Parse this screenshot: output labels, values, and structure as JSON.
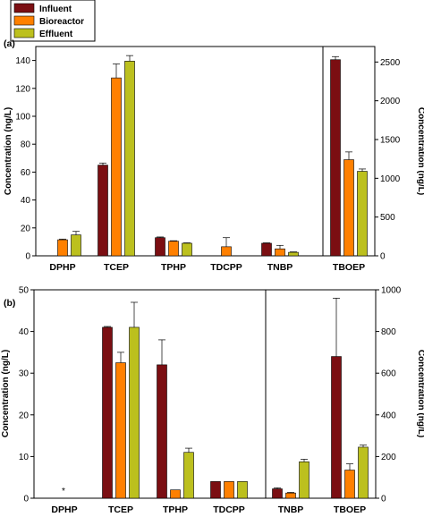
{
  "legend": [
    {
      "name": "Influent",
      "color": "#7b0e12"
    },
    {
      "name": "Bioreactor",
      "color": "#ff8000"
    },
    {
      "name": "Effluent",
      "color": "#bcc01e"
    }
  ],
  "chart_data": [
    {
      "type": "bar",
      "panel_label": "(a)",
      "categories": [
        "DPHP",
        "TCEP",
        "TPHP",
        "TDCPP",
        "TNBP",
        "TBOEP"
      ],
      "series_names": [
        "Influent",
        "Bioreactor",
        "Effluent"
      ],
      "ylabel_left": "Concentration (ng/L)",
      "ylabel_right": "Concentration (ng/L)",
      "ylim_left": [
        0,
        150
      ],
      "yticks_left": [
        0,
        20,
        40,
        60,
        80,
        100,
        120,
        140
      ],
      "ylim_right": [
        0,
        2700
      ],
      "yticks_right": [
        0,
        500,
        1000,
        1500,
        2000,
        2500
      ],
      "right_axis_categories": [
        "TBOEP"
      ],
      "groups": [
        {
          "category": "DPHP",
          "values": [
            null,
            11.5,
            15
          ],
          "errors": [
            null,
            0.5,
            2.5
          ],
          "axis": "left"
        },
        {
          "category": "TCEP",
          "values": [
            65,
            127.5,
            139.5
          ],
          "errors": [
            1.5,
            10,
            4
          ],
          "axis": "left"
        },
        {
          "category": "TPHP",
          "values": [
            13,
            10.5,
            9
          ],
          "errors": [
            0.5,
            0.3,
            0.3
          ],
          "axis": "left"
        },
        {
          "category": "TDCPP",
          "values": [
            null,
            6.5,
            null
          ],
          "errors": [
            null,
            6.5,
            null
          ],
          "axis": "left"
        },
        {
          "category": "TNBP",
          "values": [
            9,
            5,
            2.5
          ],
          "errors": [
            0.3,
            2.5,
            0.3
          ],
          "axis": "left"
        },
        {
          "category": "TBOEP",
          "values": [
            2530,
            1240,
            1090
          ],
          "errors": [
            40,
            100,
            30
          ],
          "axis": "right"
        }
      ]
    },
    {
      "type": "bar",
      "panel_label": "(b)",
      "categories": [
        "DPHP",
        "TCEP",
        "TPHP",
        "TDCPP",
        "TNBP",
        "TBOEP"
      ],
      "series_names": [
        "Influent",
        "Bioreactor",
        "Effluent"
      ],
      "ylabel_left": "Concentration (ng/L)",
      "ylabel_right": "Concentration (ng/L)",
      "ylim_left": [
        0,
        50
      ],
      "yticks_left": [
        0,
        10,
        20,
        30,
        40,
        50
      ],
      "ylim_right": [
        0,
        1000
      ],
      "yticks_right": [
        0,
        200,
        400,
        600,
        800,
        1000
      ],
      "right_axis_categories": [
        "TNBP",
        "TBOEP"
      ],
      "groups": [
        {
          "category": "DPHP",
          "values": [
            null,
            null,
            null
          ],
          "errors": [
            null,
            null,
            null
          ],
          "axis": "left",
          "annotation": "*"
        },
        {
          "category": "TCEP",
          "values": [
            41,
            32.5,
            41
          ],
          "errors": [
            0.2,
            2.5,
            6
          ],
          "axis": "left"
        },
        {
          "category": "TPHP",
          "values": [
            32,
            2,
            11
          ],
          "errors": [
            6,
            0,
            1
          ],
          "axis": "left"
        },
        {
          "category": "TDCPP",
          "values": [
            4,
            4,
            4
          ],
          "errors": [
            0,
            0,
            0
          ],
          "axis": "left"
        },
        {
          "category": "TNBP",
          "values": [
            45,
            25,
            175
          ],
          "errors": [
            5,
            3,
            12
          ],
          "axis": "right"
        },
        {
          "category": "TBOEP",
          "values": [
            680,
            135,
            245
          ],
          "errors": [
            280,
            30,
            10
          ],
          "axis": "right"
        }
      ]
    }
  ]
}
